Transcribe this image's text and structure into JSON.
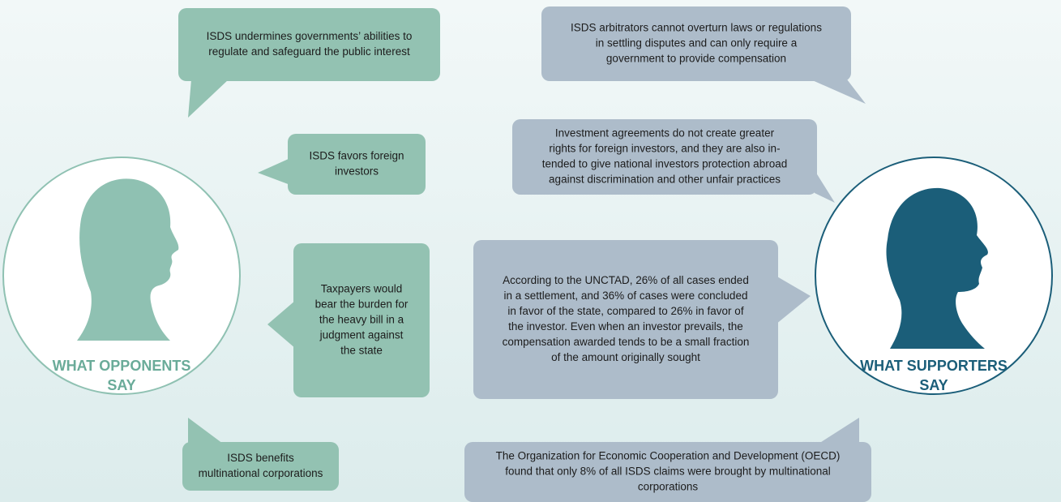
{
  "opponents": {
    "label": [
      "WHAT OPPONENTS",
      "SAY"
    ],
    "bubbles": [
      {
        "lines": [
          "ISDS undermines governments’ abilities to",
          "regulate and safeguard the public interest"
        ]
      },
      {
        "lines": [
          "ISDS favors foreign",
          "investors"
        ]
      },
      {
        "lines": [
          "Taxpayers would",
          "bear the burden for",
          "the heavy bill in a",
          "judgment against",
          "the state"
        ]
      },
      {
        "lines": [
          "ISDS benefits",
          "multinational corporations"
        ]
      }
    ]
  },
  "supporters": {
    "label": [
      "WHAT SUPPORTERS",
      "SAY"
    ],
    "bubbles": [
      {
        "lines": [
          "ISDS arbitrators cannot overturn laws or regulations",
          "in settling disputes and can only require a",
          "government to provide compensation"
        ]
      },
      {
        "lines": [
          "Investment agreements do not create greater",
          "rights for foreign investors, and they are also in-",
          "tended to give national investors protection abroad",
          "against discrimination and other unfair practices"
        ]
      },
      {
        "lines": [
          "According to the UNCTAD, 26% of all cases ended",
          "in a settlement, and 36% of cases were concluded",
          "in favor of the state, compared to 26% in favor of",
          "the investor. Even when an investor prevails, the",
          "compensation awarded tends to be a small fraction",
          "of the amount originally sought"
        ]
      },
      {
        "lines": [
          "The Organization for Economic Cooperation and Development (OECD)",
          "found that only 8% of all ISDS claims were brought by multinational",
          "corporations"
        ]
      }
    ]
  }
}
